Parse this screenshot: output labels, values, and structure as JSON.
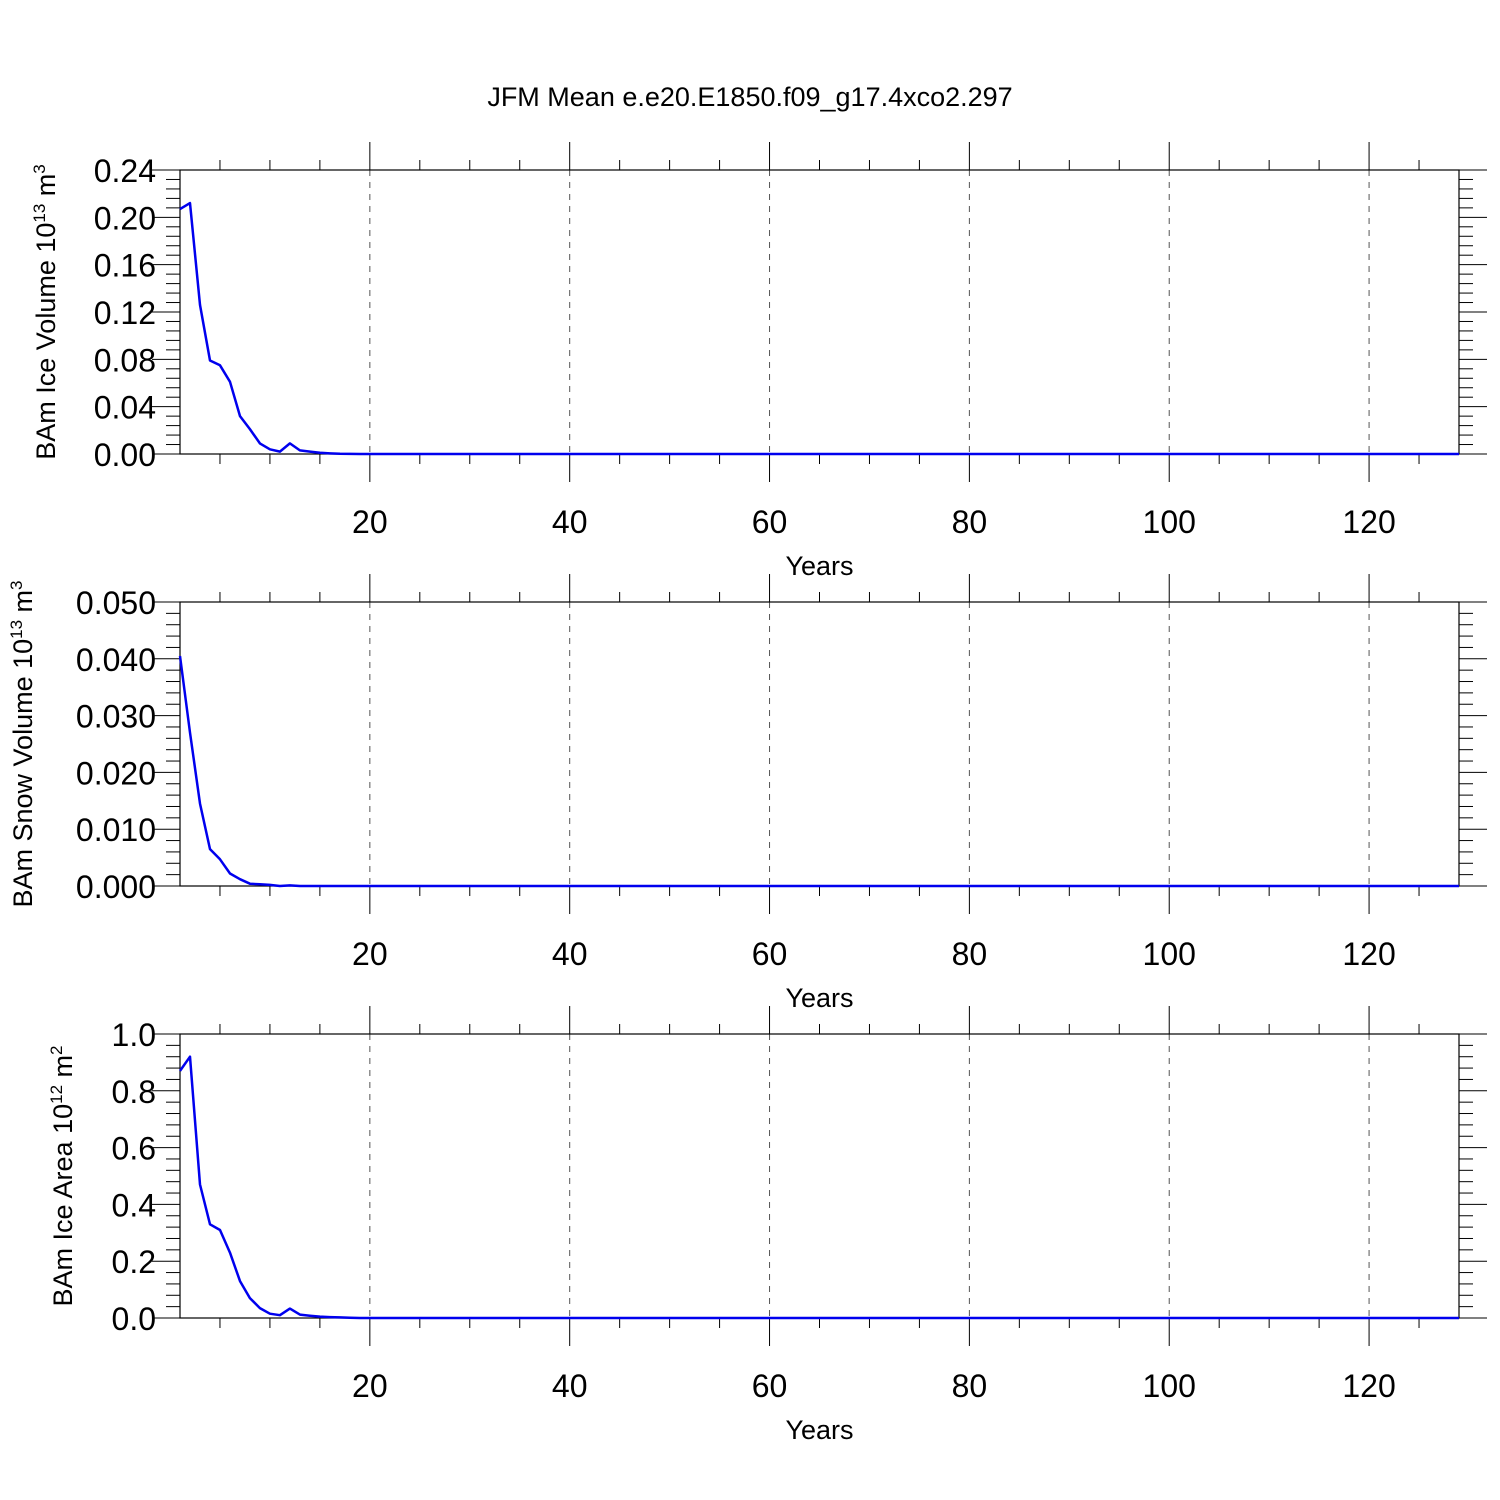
{
  "title": "JFM Mean e.e20.E1850.f09_g17.4xco2.297",
  "colors": {
    "series": "#0000ee",
    "axes": "#000000",
    "grid": "#555555"
  },
  "chart_data": [
    {
      "type": "line",
      "xlabel": "Years",
      "ylabel_parts": [
        "BAm Ice Volume 10",
        "13",
        " m",
        "3"
      ],
      "xlim": [
        1,
        129
      ],
      "ylim": [
        0,
        0.24
      ],
      "x_major_ticks": [
        20,
        40,
        60,
        80,
        100,
        120
      ],
      "x_gridlines": [
        20,
        40,
        60,
        80,
        100,
        120
      ],
      "y_ticks": [
        0.0,
        0.04,
        0.08,
        0.12,
        0.16,
        0.2,
        0.24
      ],
      "y_tick_labels": [
        "0.00",
        "0.04",
        "0.08",
        "0.12",
        "0.16",
        "0.20",
        "0.24"
      ],
      "series": [
        {
          "x": [
            1,
            2,
            3,
            4,
            5,
            6,
            7,
            8,
            9,
            10,
            11,
            12,
            13,
            14,
            15,
            16,
            17,
            18,
            19,
            20,
            129
          ],
          "values": [
            0.207,
            0.212,
            0.126,
            0.079,
            0.075,
            0.061,
            0.032,
            0.021,
            0.009,
            0.004,
            0.002,
            0.009,
            0.003,
            0.002,
            0.001,
            0.0005,
            0.0002,
            0.0001,
            0,
            0,
            0
          ]
        }
      ]
    },
    {
      "type": "line",
      "xlabel": "Years",
      "ylabel_parts": [
        "BAm Snow Volume 10",
        "13",
        " m",
        "3"
      ],
      "xlim": [
        1,
        129
      ],
      "ylim": [
        0,
        0.05
      ],
      "x_major_ticks": [
        20,
        40,
        60,
        80,
        100,
        120
      ],
      "x_gridlines": [
        20,
        40,
        60,
        80,
        100,
        120
      ],
      "y_ticks": [
        0.0,
        0.01,
        0.02,
        0.03,
        0.04,
        0.05
      ],
      "y_tick_labels": [
        "0.000",
        "0.010",
        "0.020",
        "0.030",
        "0.040",
        "0.050"
      ],
      "series": [
        {
          "x": [
            1,
            2,
            3,
            4,
            5,
            6,
            7,
            8,
            9,
            10,
            11,
            12,
            13,
            14,
            15,
            20,
            129
          ],
          "values": [
            0.0405,
            0.027,
            0.0145,
            0.0065,
            0.0047,
            0.0022,
            0.0012,
            0.0004,
            0.0003,
            0.0002,
            0.0,
            0.0001,
            0.0,
            0.0,
            0.0,
            0.0,
            0.0
          ]
        }
      ]
    },
    {
      "type": "line",
      "xlabel": "Years",
      "ylabel_parts": [
        "BAm Ice Area 10",
        "12",
        " m",
        "2"
      ],
      "xlim": [
        1,
        129
      ],
      "ylim": [
        0,
        1.0
      ],
      "x_major_ticks": [
        20,
        40,
        60,
        80,
        100,
        120
      ],
      "x_gridlines": [
        20,
        40,
        60,
        80,
        100,
        120
      ],
      "y_ticks": [
        0.0,
        0.2,
        0.4,
        0.6,
        0.8,
        1.0
      ],
      "y_tick_labels": [
        "0.0",
        "0.2",
        "0.4",
        "0.6",
        "0.8",
        "1.0"
      ],
      "series": [
        {
          "x": [
            1,
            2,
            3,
            4,
            5,
            6,
            7,
            8,
            9,
            10,
            11,
            12,
            13,
            14,
            15,
            16,
            17,
            18,
            19,
            20,
            129
          ],
          "values": [
            0.87,
            0.92,
            0.47,
            0.33,
            0.31,
            0.23,
            0.13,
            0.07,
            0.035,
            0.015,
            0.01,
            0.033,
            0.012,
            0.008,
            0.005,
            0.003,
            0.002,
            0.001,
            0,
            0,
            0
          ]
        }
      ]
    }
  ]
}
